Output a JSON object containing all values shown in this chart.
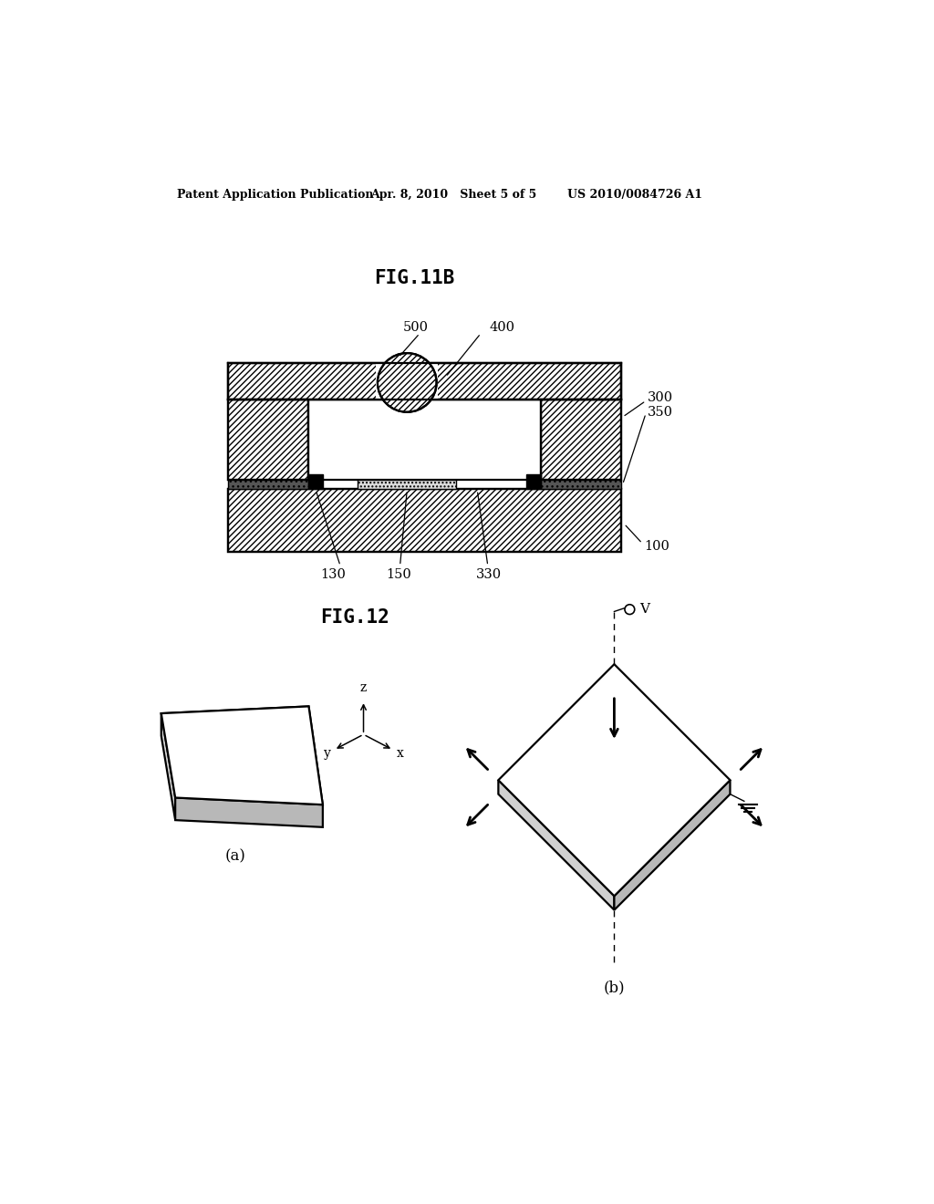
{
  "bg_color": "#ffffff",
  "header_left": "Patent Application Publication",
  "header_mid": "Apr. 8, 2010   Sheet 5 of 5",
  "header_right": "US 2010/0084726 A1",
  "fig11b_title": "FIG.11B",
  "fig12_title": "FIG.12",
  "label_a": "(a)",
  "label_b": "(b)",
  "ref_100": "100",
  "ref_130": "130",
  "ref_150": "150",
  "ref_300": "300",
  "ref_330": "330",
  "ref_350": "350",
  "ref_400": "400",
  "ref_500": "500"
}
